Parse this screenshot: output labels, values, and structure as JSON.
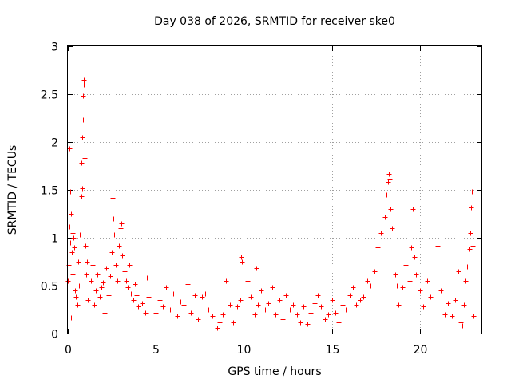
{
  "chart_data": {
    "type": "scatter",
    "title": "Day 038 of 2026, SRMTID for receiver ske0",
    "xlabel": "GPS time / hours",
    "ylabel": "SRMTID / TECUs",
    "xlim": [
      0,
      23.5
    ],
    "ylim": [
      0,
      3
    ],
    "xticks": [
      "0",
      "5",
      "10",
      "15",
      "20"
    ],
    "xtick_values": [
      0,
      5,
      10,
      15,
      20
    ],
    "yticks": [
      "0",
      "0.5",
      "1",
      "1.5",
      "2",
      "2.5",
      "3"
    ],
    "ytick_values": [
      0,
      0.5,
      1,
      1.5,
      2,
      2.5,
      3
    ],
    "grid": true,
    "marker": "+",
    "color": "#ff0000",
    "series": [
      {
        "name": "SRMTID",
        "points": [
          [
            0.0,
            0.55
          ],
          [
            0.05,
            0.72
          ],
          [
            0.08,
            1.12
          ],
          [
            0.1,
            1.93
          ],
          [
            0.12,
            1.48
          ],
          [
            0.15,
            0.95
          ],
          [
            0.18,
            1.25
          ],
          [
            0.2,
            0.17
          ],
          [
            0.22,
            0.85
          ],
          [
            0.25,
            1.05
          ],
          [
            0.28,
            0.62
          ],
          [
            0.3,
            1.0
          ],
          [
            0.35,
            0.9
          ],
          [
            0.4,
            0.45
          ],
          [
            0.45,
            0.38
          ],
          [
            0.5,
            0.58
          ],
          [
            0.55,
            0.3
          ],
          [
            0.6,
            0.75
          ],
          [
            0.65,
            0.5
          ],
          [
            0.7,
            1.03
          ],
          [
            0.75,
            1.43
          ],
          [
            0.78,
            1.78
          ],
          [
            0.8,
            1.52
          ],
          [
            0.83,
            2.05
          ],
          [
            0.86,
            2.23
          ],
          [
            0.88,
            2.48
          ],
          [
            0.9,
            2.6
          ],
          [
            0.92,
            2.65
          ],
          [
            0.95,
            1.83
          ],
          [
            1.0,
            0.92
          ],
          [
            1.05,
            0.62
          ],
          [
            1.1,
            0.75
          ],
          [
            1.15,
            0.35
          ],
          [
            1.2,
            0.5
          ],
          [
            1.3,
            0.55
          ],
          [
            1.4,
            0.72
          ],
          [
            1.5,
            0.3
          ],
          [
            1.6,
            0.45
          ],
          [
            1.7,
            0.62
          ],
          [
            1.8,
            0.38
          ],
          [
            1.9,
            0.48
          ],
          [
            2.0,
            0.53
          ],
          [
            2.1,
            0.22
          ],
          [
            2.2,
            0.68
          ],
          [
            2.3,
            0.4
          ],
          [
            2.4,
            0.6
          ],
          [
            2.5,
            0.85
          ],
          [
            2.55,
            1.42
          ],
          [
            2.6,
            1.2
          ],
          [
            2.65,
            1.03
          ],
          [
            2.7,
            0.72
          ],
          [
            2.8,
            0.55
          ],
          [
            2.9,
            0.92
          ],
          [
            3.0,
            1.1
          ],
          [
            3.05,
            1.15
          ],
          [
            3.1,
            0.82
          ],
          [
            3.2,
            0.65
          ],
          [
            3.3,
            0.55
          ],
          [
            3.4,
            0.48
          ],
          [
            3.5,
            0.72
          ],
          [
            3.6,
            0.42
          ],
          [
            3.7,
            0.35
          ],
          [
            3.8,
            0.52
          ],
          [
            3.9,
            0.4
          ],
          [
            4.0,
            0.28
          ],
          [
            4.2,
            0.32
          ],
          [
            4.4,
            0.22
          ],
          [
            4.5,
            0.58
          ],
          [
            4.6,
            0.38
          ],
          [
            4.8,
            0.5
          ],
          [
            5.0,
            0.22
          ],
          [
            5.2,
            0.35
          ],
          [
            5.4,
            0.28
          ],
          [
            5.6,
            0.48
          ],
          [
            5.8,
            0.25
          ],
          [
            6.0,
            0.42
          ],
          [
            6.2,
            0.18
          ],
          [
            6.4,
            0.33
          ],
          [
            6.6,
            0.3
          ],
          [
            6.8,
            0.52
          ],
          [
            7.0,
            0.22
          ],
          [
            7.2,
            0.4
          ],
          [
            7.4,
            0.15
          ],
          [
            7.6,
            0.38
          ],
          [
            7.8,
            0.42
          ],
          [
            8.0,
            0.25
          ],
          [
            8.2,
            0.18
          ],
          [
            8.4,
            0.08
          ],
          [
            8.5,
            0.06
          ],
          [
            8.6,
            0.12
          ],
          [
            8.8,
            0.2
          ],
          [
            9.0,
            0.55
          ],
          [
            9.2,
            0.3
          ],
          [
            9.4,
            0.12
          ],
          [
            9.6,
            0.28
          ],
          [
            9.8,
            0.35
          ],
          [
            9.85,
            0.8
          ],
          [
            9.9,
            0.75
          ],
          [
            10.0,
            0.42
          ],
          [
            10.2,
            0.55
          ],
          [
            10.4,
            0.38
          ],
          [
            10.6,
            0.2
          ],
          [
            10.7,
            0.68
          ],
          [
            10.8,
            0.3
          ],
          [
            11.0,
            0.45
          ],
          [
            11.2,
            0.25
          ],
          [
            11.4,
            0.32
          ],
          [
            11.6,
            0.48
          ],
          [
            11.8,
            0.2
          ],
          [
            12.0,
            0.35
          ],
          [
            12.2,
            0.15
          ],
          [
            12.4,
            0.4
          ],
          [
            12.6,
            0.25
          ],
          [
            12.8,
            0.3
          ],
          [
            13.0,
            0.2
          ],
          [
            13.2,
            0.12
          ],
          [
            13.4,
            0.28
          ],
          [
            13.6,
            0.1
          ],
          [
            13.8,
            0.22
          ],
          [
            14.0,
            0.32
          ],
          [
            14.2,
            0.4
          ],
          [
            14.4,
            0.28
          ],
          [
            14.6,
            0.15
          ],
          [
            14.8,
            0.2
          ],
          [
            15.0,
            0.35
          ],
          [
            15.2,
            0.22
          ],
          [
            15.4,
            0.12
          ],
          [
            15.6,
            0.3
          ],
          [
            15.8,
            0.25
          ],
          [
            16.0,
            0.4
          ],
          [
            16.2,
            0.48
          ],
          [
            16.4,
            0.3
          ],
          [
            16.6,
            0.35
          ],
          [
            16.8,
            0.38
          ],
          [
            17.0,
            0.55
          ],
          [
            17.2,
            0.5
          ],
          [
            17.4,
            0.65
          ],
          [
            17.6,
            0.9
          ],
          [
            17.8,
            1.05
          ],
          [
            18.0,
            1.22
          ],
          [
            18.1,
            1.45
          ],
          [
            18.2,
            1.58
          ],
          [
            18.25,
            1.67
          ],
          [
            18.3,
            1.62
          ],
          [
            18.35,
            1.3
          ],
          [
            18.4,
            1.1
          ],
          [
            18.5,
            0.95
          ],
          [
            18.6,
            0.62
          ],
          [
            18.7,
            0.5
          ],
          [
            18.8,
            0.3
          ],
          [
            19.0,
            0.48
          ],
          [
            19.2,
            0.72
          ],
          [
            19.4,
            0.55
          ],
          [
            19.5,
            0.9
          ],
          [
            19.6,
            1.3
          ],
          [
            19.7,
            0.8
          ],
          [
            19.8,
            0.62
          ],
          [
            20.0,
            0.45
          ],
          [
            20.2,
            0.28
          ],
          [
            20.4,
            0.55
          ],
          [
            20.6,
            0.38
          ],
          [
            20.8,
            0.25
          ],
          [
            21.0,
            0.92
          ],
          [
            21.2,
            0.45
          ],
          [
            21.4,
            0.2
          ],
          [
            21.6,
            0.32
          ],
          [
            21.8,
            0.18
          ],
          [
            22.0,
            0.35
          ],
          [
            22.2,
            0.65
          ],
          [
            22.3,
            0.12
          ],
          [
            22.4,
            0.08
          ],
          [
            22.5,
            0.3
          ],
          [
            22.6,
            0.55
          ],
          [
            22.7,
            0.7
          ],
          [
            22.8,
            0.88
          ],
          [
            22.85,
            1.05
          ],
          [
            22.9,
            1.32
          ],
          [
            22.95,
            1.48
          ],
          [
            23.0,
            0.92
          ],
          [
            23.05,
            0.18
          ]
        ]
      }
    ]
  }
}
